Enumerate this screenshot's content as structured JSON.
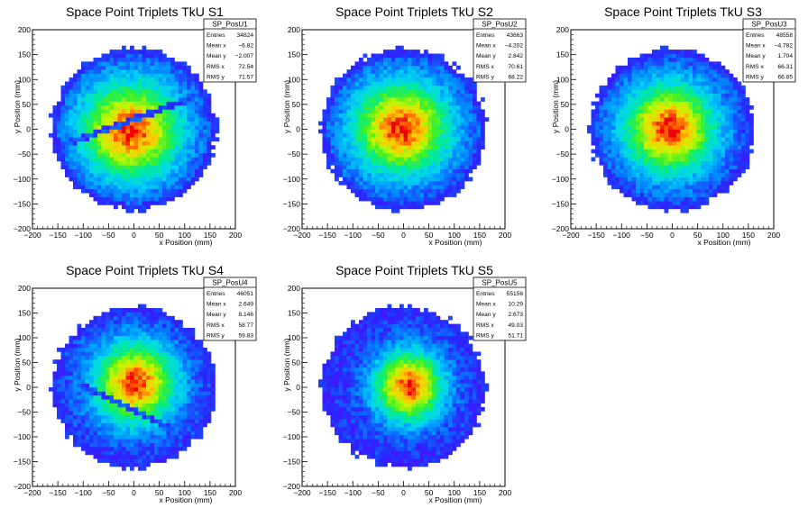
{
  "chart_data": [
    {
      "type": "heatmap",
      "title": "Space Point Triplets TkU S1",
      "xlabel": "x Position (mm)",
      "ylabel": "y Position (mm)",
      "xlim": [
        -200,
        200
      ],
      "ylim": [
        -200,
        200
      ],
      "xticks": [
        "−200",
        "−150",
        "−100",
        "−50",
        "0",
        "50",
        "100",
        "150",
        "200"
      ],
      "yticks": [
        "−200",
        "−150",
        "−100",
        "−50",
        "0",
        "50",
        "100",
        "150",
        "200"
      ],
      "histogram": "SP_PosU1",
      "stats": [
        {
          "label": "Entries",
          "value": "34824"
        },
        {
          "label": "Mean x",
          "value": "−6.82"
        },
        {
          "label": "Mean y",
          "value": "−2.007"
        },
        {
          "label": "RMS x",
          "value": "72.54"
        },
        {
          "label": "RMS y",
          "value": "71.57"
        }
      ],
      "distribution": {
        "center": [
          -6.82,
          -2.007
        ],
        "rms": [
          72.54,
          71.57
        ],
        "radius": 163,
        "dead_band": {
          "from": [
            -175,
            -45
          ],
          "to": [
            160,
            80
          ]
        }
      }
    },
    {
      "type": "heatmap",
      "title": "Space Point Triplets TkU S2",
      "xlabel": "x Position (mm)",
      "ylabel": "y Position (mm)",
      "xlim": [
        -200,
        200
      ],
      "ylim": [
        -200,
        200
      ],
      "xticks": [
        "−200",
        "−150",
        "−100",
        "−50",
        "0",
        "50",
        "100",
        "150",
        "200"
      ],
      "yticks": [
        "−200",
        "−150",
        "−100",
        "−50",
        "0",
        "50",
        "100",
        "150",
        "200"
      ],
      "histogram": "SP_PosU2",
      "stats": [
        {
          "label": "Entries",
          "value": "43663"
        },
        {
          "label": "Mean x",
          "value": "−4.202"
        },
        {
          "label": "Mean y",
          "value": "2.842"
        },
        {
          "label": "RMS x",
          "value": "70.61"
        },
        {
          "label": "RMS y",
          "value": "68.22"
        }
      ],
      "distribution": {
        "center": [
          -4.202,
          2.842
        ],
        "rms": [
          70.61,
          68.22
        ],
        "radius": 163
      }
    },
    {
      "type": "heatmap",
      "title": "Space Point Triplets TkU S3",
      "xlabel": "x Position (mm)",
      "ylabel": "y Position (mm)",
      "xlim": [
        -200,
        200
      ],
      "ylim": [
        -200,
        200
      ],
      "xticks": [
        "−200",
        "−150",
        "−100",
        "−50",
        "0",
        "50",
        "100",
        "150",
        "200"
      ],
      "yticks": [
        "−200",
        "−150",
        "−100",
        "−50",
        "0",
        "50",
        "100",
        "150",
        "200"
      ],
      "histogram": "SP_PosU3",
      "stats": [
        {
          "label": "Entries",
          "value": "48558"
        },
        {
          "label": "Mean x",
          "value": "−4.782"
        },
        {
          "label": "Mean y",
          "value": "1.704"
        },
        {
          "label": "RMS x",
          "value": "66.31"
        },
        {
          "label": "RMS y",
          "value": "66.85"
        }
      ],
      "distribution": {
        "center": [
          -4.782,
          1.704
        ],
        "rms": [
          66.31,
          66.85
        ],
        "radius": 163
      }
    },
    {
      "type": "heatmap",
      "title": "Space Point Triplets TkU S4",
      "xlabel": "x Position (mm)",
      "ylabel": "y Position (mm)",
      "xlim": [
        -200,
        200
      ],
      "ylim": [
        -200,
        200
      ],
      "xticks": [
        "−200",
        "−150",
        "−100",
        "−50",
        "0",
        "50",
        "100",
        "150",
        "200"
      ],
      "yticks": [
        "−200",
        "−150",
        "−100",
        "−50",
        "0",
        "50",
        "100",
        "150",
        "200"
      ],
      "histogram": "SP_PosU4",
      "stats": [
        {
          "label": "Entries",
          "value": "46051"
        },
        {
          "label": "Mean x",
          "value": "2.649"
        },
        {
          "label": "Mean y",
          "value": "8.146"
        },
        {
          "label": "RMS x",
          "value": "58.77"
        },
        {
          "label": "RMS y",
          "value": "59.83"
        }
      ],
      "distribution": {
        "center": [
          2.649,
          8.146
        ],
        "rms": [
          58.77,
          59.83
        ],
        "radius": 163,
        "dead_band": {
          "from": [
            -95,
            0
          ],
          "to": [
            70,
            -80
          ]
        }
      }
    },
    {
      "type": "heatmap",
      "title": "Space Point Triplets TkU S5",
      "xlabel": "x Position (mm)",
      "ylabel": "y Position (mm)",
      "xlim": [
        -200,
        200
      ],
      "ylim": [
        -200,
        200
      ],
      "xticks": [
        "−200",
        "−150",
        "−100",
        "−50",
        "0",
        "50",
        "100",
        "150",
        "200"
      ],
      "yticks": [
        "−200",
        "−150",
        "−100",
        "−50",
        "0",
        "50",
        "100",
        "150",
        "200"
      ],
      "histogram": "SP_PosU5",
      "stats": [
        {
          "label": "Entries",
          "value": "55156"
        },
        {
          "label": "Mean x",
          "value": "10.29"
        },
        {
          "label": "Mean y",
          "value": "2.673"
        },
        {
          "label": "RMS x",
          "value": "49.03"
        },
        {
          "label": "RMS y",
          "value": "51.71"
        }
      ],
      "distribution": {
        "center": [
          10.29,
          2.673
        ],
        "rms": [
          49.03,
          51.71
        ],
        "radius": 163
      }
    }
  ]
}
